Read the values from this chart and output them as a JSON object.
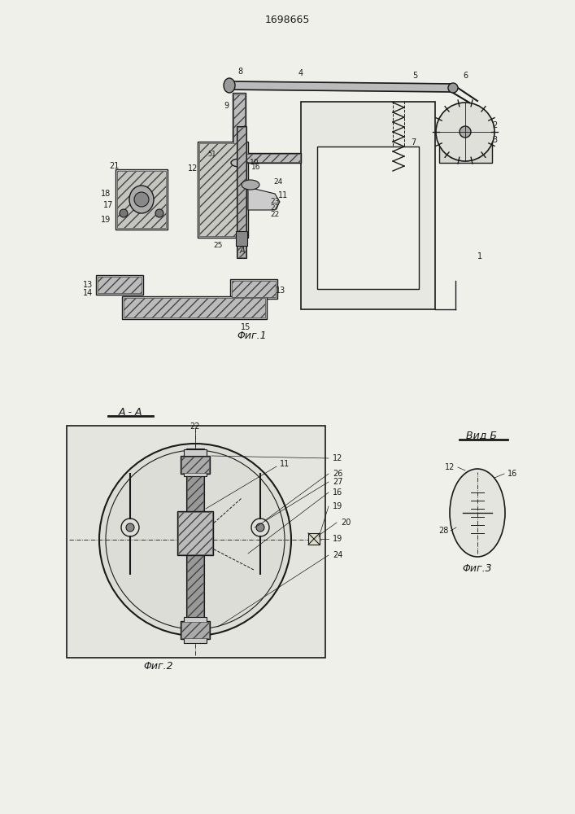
{
  "title": "1698665",
  "fig1_caption": "Φиг.1",
  "fig2_caption": "Φиг.2",
  "fig3_caption": "Φиг.3",
  "fig2_label": "A - A",
  "fig3_label": "Вид Б",
  "bg_color": "#f0f0eb",
  "line_color": "#1a1a1a",
  "hatch_color": "#333333"
}
